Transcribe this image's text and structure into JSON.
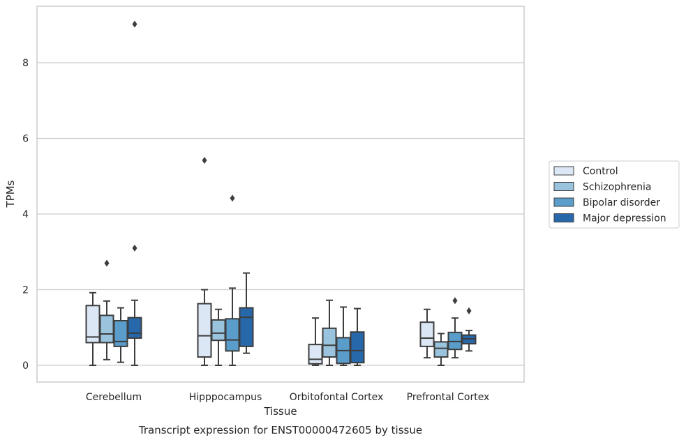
{
  "caption": "Transcript expression for ENST00000472605 by tissue",
  "chart_data": {
    "type": "box",
    "xlabel": "Tissue",
    "ylabel": "TPMs",
    "ylim": [
      -0.45,
      9.6
    ],
    "yticks": [
      0,
      2,
      4,
      6,
      8
    ],
    "grid": "horizontal",
    "legend_position": "right",
    "categories": [
      "Cerebellum",
      "Hipppocampus",
      "Orbitofontal Cortex",
      "Prefrontal Cortex"
    ],
    "series": [
      {
        "name": "Control",
        "color": "#dbe7f5",
        "boxes": [
          {
            "whisker_low": 0.0,
            "q1": 0.6,
            "median": 0.75,
            "q3": 1.58,
            "whisker_high": 1.92,
            "outliers": []
          },
          {
            "whisker_low": 0.0,
            "q1": 0.22,
            "median": 0.78,
            "q3": 1.63,
            "whisker_high": 2.0,
            "outliers": [
              5.42
            ]
          },
          {
            "whisker_low": 0.0,
            "q1": 0.04,
            "median": 0.16,
            "q3": 0.55,
            "whisker_high": 1.25,
            "outliers": []
          },
          {
            "whisker_low": 0.2,
            "q1": 0.5,
            "median": 0.72,
            "q3": 1.14,
            "whisker_high": 1.48,
            "outliers": []
          }
        ]
      },
      {
        "name": "Schizophrenia",
        "color": "#9ac3dd",
        "boxes": [
          {
            "whisker_low": 0.15,
            "q1": 0.6,
            "median": 0.83,
            "q3": 1.32,
            "whisker_high": 1.7,
            "outliers": [
              2.7
            ]
          },
          {
            "whisker_low": 0.0,
            "q1": 0.66,
            "median": 0.85,
            "q3": 1.2,
            "whisker_high": 1.48,
            "outliers": []
          },
          {
            "whisker_low": 0.0,
            "q1": 0.22,
            "median": 0.53,
            "q3": 0.98,
            "whisker_high": 1.72,
            "outliers": []
          },
          {
            "whisker_low": 0.0,
            "q1": 0.22,
            "median": 0.45,
            "q3": 0.62,
            "whisker_high": 0.84,
            "outliers": []
          }
        ]
      },
      {
        "name": "Bipolar disorder",
        "color": "#5a9cca",
        "boxes": [
          {
            "whisker_low": 0.08,
            "q1": 0.5,
            "median": 0.63,
            "q3": 1.18,
            "whisker_high": 1.52,
            "outliers": []
          },
          {
            "whisker_low": 0.0,
            "q1": 0.38,
            "median": 0.67,
            "q3": 1.23,
            "whisker_high": 2.04,
            "outliers": [
              4.42
            ]
          },
          {
            "whisker_low": 0.0,
            "q1": 0.05,
            "median": 0.39,
            "q3": 0.73,
            "whisker_high": 1.54,
            "outliers": []
          },
          {
            "whisker_low": 0.2,
            "q1": 0.42,
            "median": 0.63,
            "q3": 0.87,
            "whisker_high": 1.25,
            "outliers": [
              1.71
            ]
          }
        ]
      },
      {
        "name": "Major depression",
        "color": "#2768ab",
        "boxes": [
          {
            "whisker_low": 0.0,
            "q1": 0.72,
            "median": 0.85,
            "q3": 1.26,
            "whisker_high": 1.72,
            "outliers": [
              3.1,
              9.02
            ]
          },
          {
            "whisker_low": 0.32,
            "q1": 0.5,
            "median": 1.27,
            "q3": 1.52,
            "whisker_high": 2.44,
            "outliers": []
          },
          {
            "whisker_low": 0.0,
            "q1": 0.07,
            "median": 0.39,
            "q3": 0.88,
            "whisker_high": 1.5,
            "outliers": []
          },
          {
            "whisker_low": 0.38,
            "q1": 0.57,
            "median": 0.7,
            "q3": 0.8,
            "whisker_high": 0.92,
            "outliers": [
              1.44
            ]
          }
        ]
      }
    ]
  }
}
